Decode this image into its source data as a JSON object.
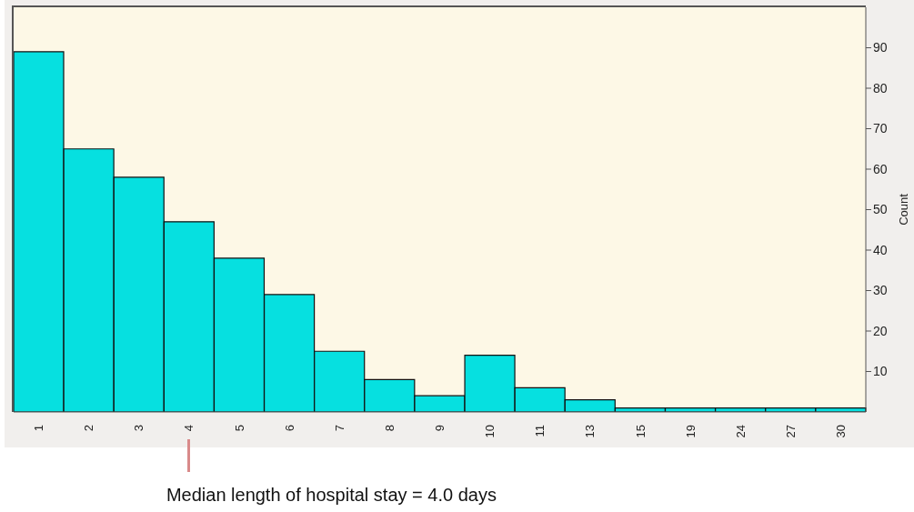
{
  "chart_data": {
    "type": "bar",
    "categories": [
      "1",
      "2",
      "3",
      "4",
      "5",
      "6",
      "7",
      "8",
      "9",
      "10",
      "11",
      "13",
      "15",
      "19",
      "24",
      "27",
      "30"
    ],
    "values": [
      89,
      65,
      58,
      47,
      38,
      29,
      15,
      8,
      4,
      14,
      6,
      3,
      1,
      1,
      1,
      1,
      1
    ],
    "color": "#06e0e0",
    "ylabel": "Count",
    "ylim": [
      0,
      100
    ],
    "yticks": [
      10,
      20,
      30,
      40,
      50,
      60,
      70,
      80,
      90
    ],
    "annotations": [
      "Median length of hospital stay = 4.0 days"
    ]
  }
}
